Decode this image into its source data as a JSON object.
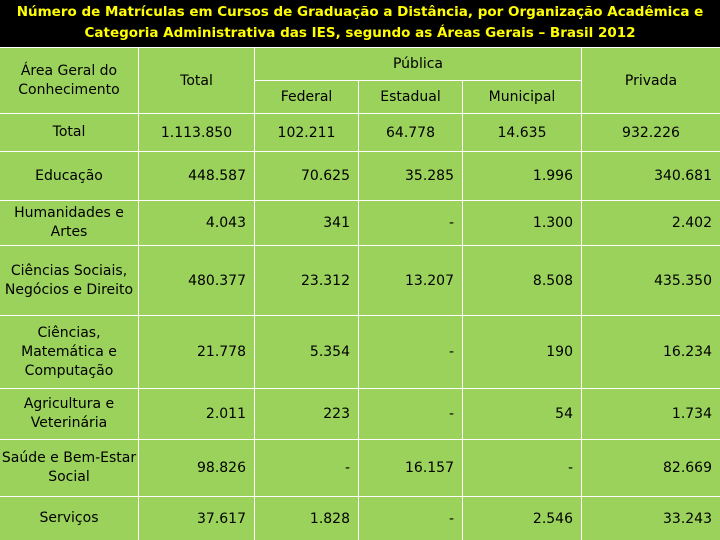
{
  "title_line1": "Número de Matrículas em Cursos de Graduação a Distância, por Organização Acadêmica e",
  "title_line2": "Categoria Administrativa das IES, segundo as Áreas Gerais – Brasil 2012",
  "headers": {
    "area": "Área Geral do Conhecimento",
    "total": "Total",
    "publica": "Pública",
    "federal": "Federal",
    "estadual": "Estadual",
    "municipal": "Municipal",
    "privada": "Privada"
  },
  "rows": [
    {
      "area": "Total",
      "total": "1.113.850",
      "federal": "102.211",
      "estadual": "64.778",
      "municipal": "14.635",
      "privada": "932.226"
    },
    {
      "area": "Educação",
      "total": "448.587",
      "federal": "70.625",
      "estadual": "35.285",
      "municipal": "1.996",
      "privada": "340.681"
    },
    {
      "area": "Humanidades e Artes",
      "total": "4.043",
      "federal": "341",
      "estadual": "-",
      "municipal": "1.300",
      "privada": "2.402"
    },
    {
      "area": "Ciências Sociais, Negócios e Direito",
      "total": "480.377",
      "federal": "23.312",
      "estadual": "13.207",
      "municipal": "8.508",
      "privada": "435.350"
    },
    {
      "area": "Ciências, Matemática e Computação",
      "total": "21.778",
      "federal": "5.354",
      "estadual": "-",
      "municipal": "190",
      "privada": "16.234"
    },
    {
      "area": "Agricultura e Veterinária",
      "total": "2.011",
      "federal": "223",
      "estadual": "-",
      "municipal": "54",
      "privada": "1.734"
    },
    {
      "area": "Saúde e Bem-Estar Social",
      "total": "98.826",
      "federal": "-",
      "estadual": "16.157",
      "municipal": "-",
      "privada": "82.669"
    },
    {
      "area": "Serviços",
      "total": "37.617",
      "federal": "1.828",
      "estadual": "-",
      "municipal": "2.546",
      "privada": "33.243"
    }
  ],
  "colors": {
    "title": "#ffff00",
    "cell_bg": "#9bd25b",
    "grid": "#ffffff",
    "page_bg": "#000000"
  }
}
